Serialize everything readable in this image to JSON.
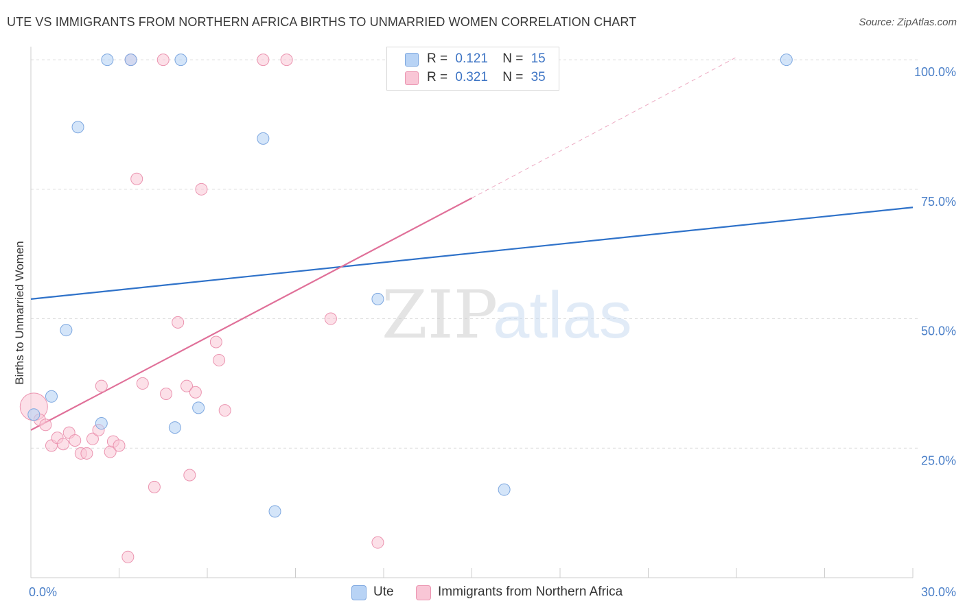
{
  "header": {
    "title": "UTE VS IMMIGRANTS FROM NORTHERN AFRICA BIRTHS TO UNMARRIED WOMEN CORRELATION CHART",
    "source": "Source: ZipAtlas.com"
  },
  "watermark": {
    "zip": "ZIP",
    "atlas": "atlas"
  },
  "legend": {
    "rows": [
      {
        "r_label": "R =",
        "r_value": "0.121",
        "n_label": "N =",
        "n_value": "15"
      },
      {
        "r_label": "R =",
        "r_value": "0.321",
        "n_label": "N =",
        "n_value": "35"
      }
    ]
  },
  "colors": {
    "ute_fill": "#b8d3f5",
    "ute_stroke": "#7ea8e0",
    "ute_line": "#2f72c9",
    "naf_fill": "#f9c6d6",
    "naf_stroke": "#eb94b0",
    "naf_line": "#e07099",
    "grid": "#dddddd",
    "tick_text": "#4a7fc8"
  },
  "chart_data": {
    "type": "scatter",
    "title": "UTE VS IMMIGRANTS FROM NORTHERN AFRICA BIRTHS TO UNMARRIED WOMEN CORRELATION CHART",
    "xlabel": "",
    "ylabel": "Births to Unmarried Women",
    "xlim": [
      0,
      30
    ],
    "ylim": [
      0,
      102
    ],
    "x_tick_labels": [
      "0.0%",
      "30.0%"
    ],
    "y_ticks": [
      25,
      50,
      75,
      100
    ],
    "y_tick_labels": [
      "25.0%",
      "50.0%",
      "75.0%",
      "100.0%"
    ],
    "grid": true,
    "series": [
      {
        "name": "Ute",
        "r": 0.121,
        "n": 15,
        "points": [
          {
            "x": 0.1,
            "y": 31.5
          },
          {
            "x": 0.7,
            "y": 35.0
          },
          {
            "x": 1.2,
            "y": 47.8
          },
          {
            "x": 1.6,
            "y": 87.0
          },
          {
            "x": 2.4,
            "y": 29.8
          },
          {
            "x": 2.6,
            "y": 100.0
          },
          {
            "x": 3.4,
            "y": 100.0
          },
          {
            "x": 4.9,
            "y": 29.0
          },
          {
            "x": 5.1,
            "y": 100.0
          },
          {
            "x": 5.7,
            "y": 32.8
          },
          {
            "x": 7.9,
            "y": 84.8
          },
          {
            "x": 8.3,
            "y": 12.8
          },
          {
            "x": 11.8,
            "y": 53.8
          },
          {
            "x": 16.1,
            "y": 17.0
          },
          {
            "x": 25.7,
            "y": 100.0
          }
        ],
        "trend": {
          "x0": 0,
          "y0": 53.8,
          "x1": 30,
          "y1": 71.5
        }
      },
      {
        "name": "Immigrants from Northern Africa",
        "r": 0.321,
        "n": 35,
        "points": [
          {
            "x": 0.1,
            "y": 33.0
          },
          {
            "x": 0.3,
            "y": 30.5
          },
          {
            "x": 0.5,
            "y": 29.5
          },
          {
            "x": 0.7,
            "y": 25.5
          },
          {
            "x": 0.9,
            "y": 27.0
          },
          {
            "x": 1.1,
            "y": 25.8
          },
          {
            "x": 1.3,
            "y": 28.0
          },
          {
            "x": 1.5,
            "y": 26.5
          },
          {
            "x": 1.7,
            "y": 24.0
          },
          {
            "x": 1.9,
            "y": 24.0
          },
          {
            "x": 2.1,
            "y": 26.8
          },
          {
            "x": 2.3,
            "y": 28.5
          },
          {
            "x": 2.4,
            "y": 37.0
          },
          {
            "x": 2.7,
            "y": 24.3
          },
          {
            "x": 2.8,
            "y": 26.3
          },
          {
            "x": 3.0,
            "y": 25.5
          },
          {
            "x": 3.3,
            "y": 4.0
          },
          {
            "x": 3.4,
            "y": 100.0
          },
          {
            "x": 3.6,
            "y": 77.0
          },
          {
            "x": 3.8,
            "y": 37.5
          },
          {
            "x": 4.2,
            "y": 17.5
          },
          {
            "x": 4.5,
            "y": 100.0
          },
          {
            "x": 4.6,
            "y": 35.5
          },
          {
            "x": 5.0,
            "y": 49.3
          },
          {
            "x": 5.3,
            "y": 37.0
          },
          {
            "x": 5.4,
            "y": 19.8
          },
          {
            "x": 5.6,
            "y": 35.8
          },
          {
            "x": 5.8,
            "y": 75.0
          },
          {
            "x": 6.3,
            "y": 45.5
          },
          {
            "x": 6.4,
            "y": 42.0
          },
          {
            "x": 6.6,
            "y": 32.3
          },
          {
            "x": 7.9,
            "y": 100.0
          },
          {
            "x": 8.7,
            "y": 100.0
          },
          {
            "x": 10.2,
            "y": 50.0
          },
          {
            "x": 11.8,
            "y": 6.8
          }
        ],
        "trend": {
          "x0": 0,
          "y0": 28.5,
          "x1": 15,
          "y1": 73.3
        },
        "trend_ext": {
          "x0": 15,
          "y0": 73.3,
          "x1": 24,
          "y1": 100.5
        }
      }
    ]
  },
  "bottom_legend": {
    "items": [
      {
        "label": "Ute"
      },
      {
        "label": "Immigrants from Northern Africa"
      }
    ]
  }
}
